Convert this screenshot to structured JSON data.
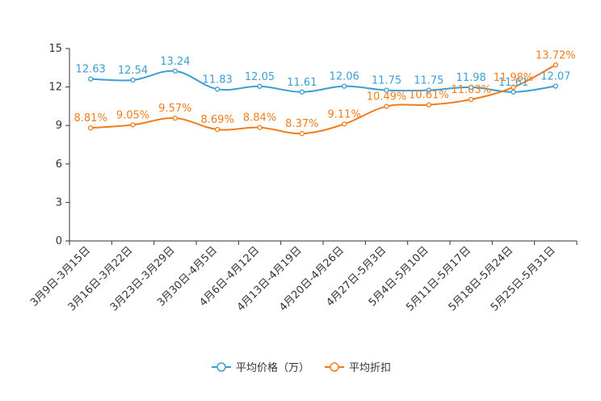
{
  "chart_data": {
    "type": "line",
    "title": "",
    "xlabel": "",
    "ylabel": "",
    "ylim": [
      0,
      15
    ],
    "yticks": [
      0,
      3,
      6,
      9,
      12,
      15
    ],
    "categories": [
      "3月9日-3月15日",
      "3月16日-3月22日",
      "3月23日-3月29日",
      "3月30日-4月5日",
      "4月6日-4月12日",
      "4月13日-4月19日",
      "4月20日-4月26日",
      "4月27日-5月3日",
      "5月4日-5月10日",
      "5月11日-5月17日",
      "5月18日-5月24日",
      "5月25日-5月31日"
    ],
    "series": [
      {
        "name": "平均价格（万）",
        "color": "#3d9dd4",
        "values": [
          12.63,
          12.54,
          13.24,
          11.83,
          12.05,
          11.61,
          12.06,
          11.75,
          11.75,
          11.98,
          11.61,
          12.07
        ],
        "labels": [
          "12.63",
          "12.54",
          "13.24",
          "11.83",
          "12.05",
          "11.61",
          "12.06",
          "11.75",
          "11.75",
          "11.98",
          "11.61",
          "12.07"
        ]
      },
      {
        "name": "平均折扣",
        "color": "#f07d1b",
        "values": [
          8.81,
          9.05,
          9.57,
          8.69,
          8.84,
          8.37,
          9.11,
          10.49,
          10.61,
          11.03,
          11.98,
          13.72
        ],
        "labels": [
          "8.81%",
          "9.05%",
          "9.57%",
          "8.69%",
          "8.84%",
          "8.37%",
          "9.11%",
          "10.49%",
          "10.61%",
          "11.03%",
          "11.98%",
          "13.72%"
        ]
      }
    ],
    "legend_position": "bottom-center",
    "grid": false
  }
}
